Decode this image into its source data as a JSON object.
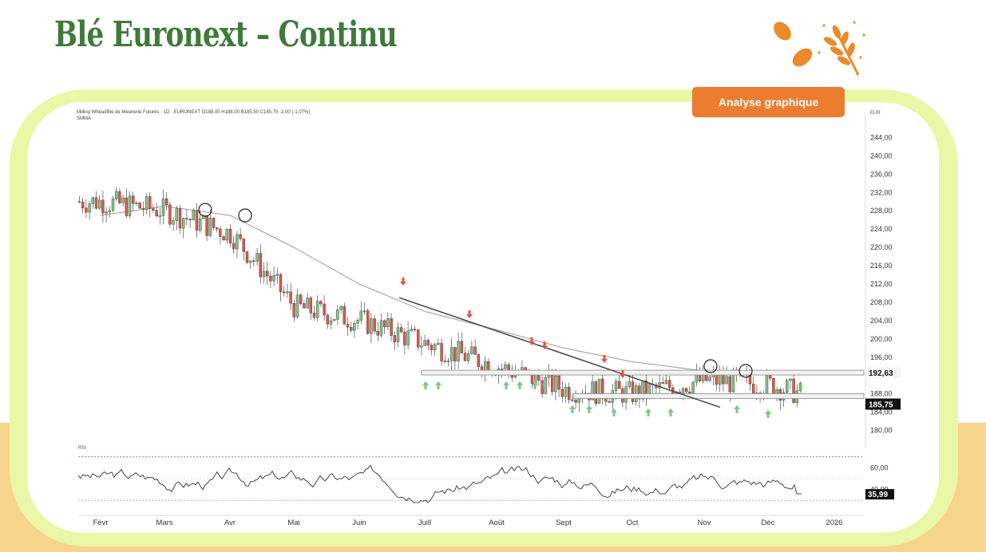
{
  "page_title": "Blé Euronext – Continu",
  "badge_label": "Analyse graphique",
  "colors": {
    "title_green": "#3f7a3a",
    "badge_orange": "#ec7c2f",
    "frame": "#e9f7a6",
    "up": "#7ec48a",
    "down": "#e0574a",
    "ma": "#9a9a9a"
  },
  "chart_data": {
    "type": "candlestick",
    "info_line": "Milling Wheat/Ble de Meunerie Futures · 1D · EURONEXT  O188,00 H188,00 B185,50 C185,75 -2,00 (-1,07%)",
    "ma_label": "SMMA",
    "currency": "EUR",
    "y_ticks": [
      "244,00",
      "240,00",
      "236,00",
      "232,00",
      "228,00",
      "224,00",
      "220,00",
      "216,00",
      "212,00",
      "208,00",
      "204,00",
      "200,00",
      "196,00",
      "188,00",
      "184,00",
      "180,00"
    ],
    "ylim": [
      178,
      246
    ],
    "price_labels": {
      "resistance": "192,63",
      "last": "185,75"
    },
    "x_labels": [
      "Févr",
      "Mars",
      "Avr",
      "Mai",
      "Juin",
      "Juill",
      "Août",
      "Sept",
      "Oct",
      "Nov",
      "Déc",
      "2026"
    ],
    "close_by_month": {
      "x": [
        "Févr",
        "Mars",
        "Avr",
        "Mai",
        "Juin",
        "Juill",
        "Août",
        "Sept",
        "Oct",
        "Nov",
        "Déc",
        "fin Déc"
      ],
      "close": [
        230,
        228,
        223,
        207,
        204,
        199,
        194,
        189,
        188,
        191,
        190,
        185.75
      ]
    },
    "moving_average": {
      "x": [
        "Févr",
        "Mars",
        "Avr",
        "Mai",
        "Juin",
        "Juill",
        "Août",
        "Sept",
        "Oct",
        "Nov",
        "Déc"
      ],
      "values": [
        227,
        229,
        227,
        220,
        212,
        206,
        202,
        198,
        195,
        193,
        192.5
      ]
    },
    "levels": [
      {
        "name": "resistance",
        "value": 192.63
      },
      {
        "name": "support",
        "value": 187.5
      }
    ],
    "trendline": {
      "from": [
        "Juill",
        209
      ],
      "to": [
        "Oct",
        184
      ]
    },
    "rsi": {
      "label": "RSI",
      "y_ticks": [
        "60,00",
        "40,00"
      ],
      "last": "35,99",
      "bands": [
        70,
        30,
        50
      ],
      "ylim": [
        20,
        80
      ]
    }
  }
}
